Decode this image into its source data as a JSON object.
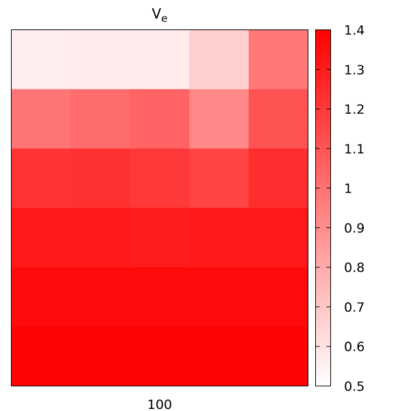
{
  "chart_data": {
    "type": "heatmap",
    "title": "V",
    "title_subscript": "e",
    "x_tick_labels": [
      "100"
    ],
    "grid": false,
    "colormap": {
      "low": "#ffffff",
      "high": "#ff0000"
    },
    "colorbar": {
      "min": 0.5,
      "max": 1.4,
      "ticks": [
        0.5,
        0.6,
        0.7,
        0.8,
        0.9,
        1,
        1.1,
        1.2,
        1.3,
        1.4
      ],
      "tick_labels": [
        "0.5",
        "0.6",
        "0.7",
        "0.8",
        "0.9",
        "1",
        "1.1",
        "1.2",
        "1.3",
        "1.4"
      ]
    },
    "rows": 6,
    "cols": 5,
    "values": [
      [
        0.56,
        0.57,
        0.57,
        0.67,
        0.98
      ],
      [
        0.99,
        1.02,
        1.05,
        0.92,
        1.11
      ],
      [
        1.22,
        1.23,
        1.2,
        1.16,
        1.24
      ],
      [
        1.31,
        1.31,
        1.3,
        1.31,
        1.31
      ],
      [
        1.36,
        1.36,
        1.36,
        1.36,
        1.36
      ],
      [
        1.39,
        1.39,
        1.39,
        1.39,
        1.39
      ]
    ]
  }
}
